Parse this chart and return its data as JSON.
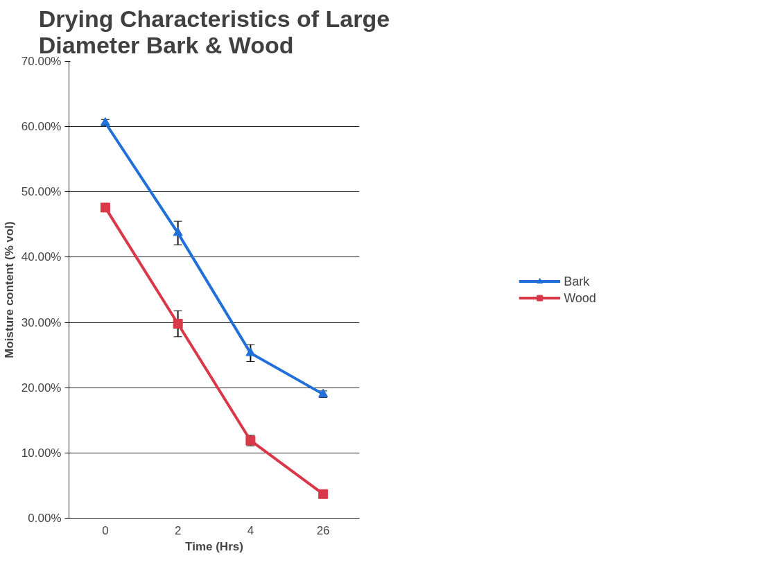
{
  "chart_data": {
    "type": "line",
    "title": "Drying Characteristics of Large\nDiameter Bark & Wood",
    "xlabel": "Time (Hrs)",
    "ylabel": "Moisture content (% vol)",
    "categories": [
      "0",
      "2",
      "4",
      "26"
    ],
    "series": [
      {
        "name": "Bark",
        "color": "#2070d8",
        "marker": "triangle",
        "values": [
          60.6,
          43.7,
          25.3,
          19.0
        ],
        "errors": [
          0.5,
          1.8,
          1.3,
          0.5
        ]
      },
      {
        "name": "Wood",
        "color": "#d83848",
        "marker": "square",
        "values": [
          47.6,
          29.8,
          11.9,
          3.7
        ],
        "errors": [
          null,
          2.0,
          0.8,
          null
        ]
      }
    ],
    "ylim": [
      0,
      70
    ],
    "yticks": [
      {
        "value": 0,
        "label": "0.00%"
      },
      {
        "value": 10,
        "label": "10.00%"
      },
      {
        "value": 20,
        "label": "20.00%"
      },
      {
        "value": 30,
        "label": "30.00%"
      },
      {
        "value": 40,
        "label": "40.00%"
      },
      {
        "value": 50,
        "label": "50.00%"
      },
      {
        "value": 60,
        "label": "60.00%"
      },
      {
        "value": 70,
        "label": "70.00%"
      }
    ],
    "grid": "y",
    "legend": "right"
  }
}
